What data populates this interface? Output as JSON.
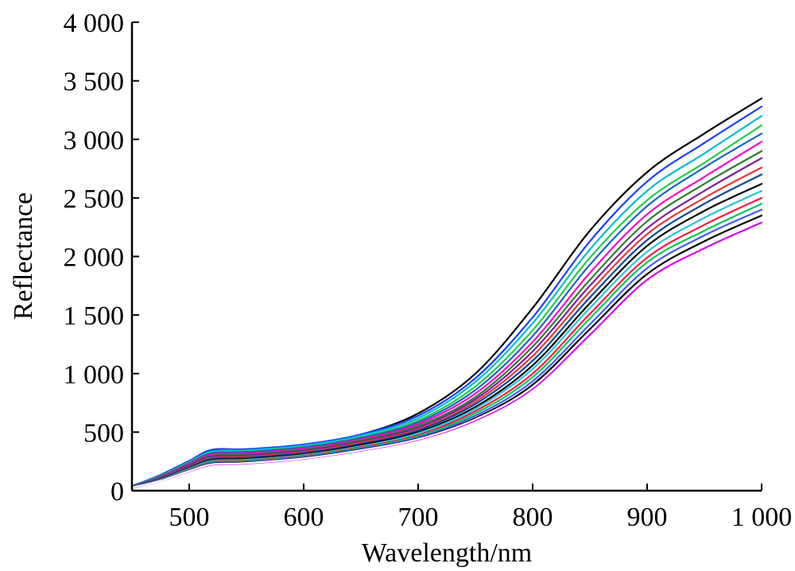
{
  "chart_data": {
    "type": "line",
    "title": "",
    "xlabel": "Wavelength/nm",
    "ylabel": "Reflectance",
    "xlim": [
      450,
      1000
    ],
    "ylim": [
      0,
      4000
    ],
    "grid": false,
    "legend": "none",
    "x_ticks": [
      {
        "value": 500,
        "label": "500"
      },
      {
        "value": 600,
        "label": "600"
      },
      {
        "value": 700,
        "label": "700"
      },
      {
        "value": 800,
        "label": "800"
      },
      {
        "value": 900,
        "label": "900"
      },
      {
        "value": 1000,
        "label": "1 000"
      }
    ],
    "y_ticks": [
      {
        "value": 0,
        "label": "0"
      },
      {
        "value": 500,
        "label": "500"
      },
      {
        "value": 1000,
        "label": "1 000"
      },
      {
        "value": 1500,
        "label": "1 500"
      },
      {
        "value": 2000,
        "label": "2 000"
      },
      {
        "value": 2500,
        "label": "2 500"
      },
      {
        "value": 3000,
        "label": "3 000"
      },
      {
        "value": 3500,
        "label": "3 500"
      },
      {
        "value": 4000,
        "label": "4 000"
      }
    ],
    "x": [
      450,
      475,
      500,
      520,
      550,
      600,
      650,
      700,
      750,
      800,
      850,
      900,
      950,
      1000
    ],
    "series": [
      {
        "color": "#000000",
        "values": [
          40,
          130,
          250,
          340,
          350,
          390,
          480,
          660,
          1000,
          1560,
          2220,
          2720,
          3050,
          3350
        ]
      },
      {
        "color": "#1f3fff",
        "values": [
          40,
          135,
          255,
          350,
          355,
          395,
          480,
          640,
          960,
          1480,
          2130,
          2640,
          2970,
          3280
        ]
      },
      {
        "color": "#00bcd4",
        "values": [
          38,
          128,
          245,
          335,
          345,
          385,
          470,
          620,
          930,
          1430,
          2060,
          2560,
          2880,
          3200
        ]
      },
      {
        "color": "#22cc44",
        "values": [
          36,
          125,
          240,
          325,
          335,
          375,
          455,
          600,
          890,
          1370,
          1990,
          2480,
          2800,
          3120
        ]
      },
      {
        "color": "#1565c0",
        "values": [
          36,
          122,
          235,
          320,
          330,
          370,
          450,
          585,
          860,
          1320,
          1930,
          2430,
          2760,
          3050
        ]
      },
      {
        "color": "#ff00cc",
        "values": [
          34,
          118,
          230,
          310,
          320,
          360,
          440,
          570,
          830,
          1270,
          1860,
          2360,
          2680,
          2980
        ]
      },
      {
        "color": "#2e7d32",
        "values": [
          33,
          115,
          222,
          300,
          310,
          350,
          430,
          555,
          800,
          1230,
          1800,
          2300,
          2620,
          2900
        ]
      },
      {
        "color": "#7b1fa2",
        "values": [
          32,
          110,
          215,
          290,
          300,
          340,
          420,
          540,
          780,
          1190,
          1750,
          2240,
          2560,
          2840
        ]
      },
      {
        "color": "#e53935",
        "values": [
          30,
          105,
          205,
          280,
          290,
          330,
          410,
          525,
          760,
          1150,
          1700,
          2190,
          2500,
          2760
        ]
      },
      {
        "color": "#0d47a1",
        "values": [
          30,
          102,
          200,
          272,
          282,
          322,
          400,
          515,
          740,
          1110,
          1650,
          2140,
          2450,
          2700
        ]
      },
      {
        "color": "#000000",
        "values": [
          28,
          98,
          192,
          262,
          272,
          312,
          390,
          500,
          715,
          1070,
          1600,
          2090,
          2390,
          2620
        ]
      },
      {
        "color": "#26c6da",
        "values": [
          28,
          95,
          188,
          255,
          265,
          305,
          380,
          490,
          700,
          1040,
          1560,
          2040,
          2330,
          2560
        ]
      },
      {
        "color": "#ff1744",
        "values": [
          26,
          92,
          182,
          248,
          258,
          298,
          372,
          475,
          680,
          1000,
          1510,
          1990,
          2270,
          2500
        ]
      },
      {
        "color": "#00c853",
        "values": [
          26,
          90,
          178,
          242,
          252,
          292,
          365,
          465,
          660,
          970,
          1470,
          1950,
          2220,
          2450
        ]
      },
      {
        "color": "#3d5afe",
        "values": [
          25,
          88,
          174,
          236,
          246,
          286,
          358,
          455,
          640,
          935,
          1420,
          1900,
          2180,
          2400
        ]
      },
      {
        "color": "#000000",
        "values": [
          24,
          86,
          170,
          230,
          240,
          280,
          350,
          445,
          620,
          905,
          1380,
          1850,
          2130,
          2350
        ]
      },
      {
        "color": "#d500f9",
        "values": [
          24,
          84,
          165,
          222,
          232,
          272,
          342,
          435,
          600,
          870,
          1330,
          1800,
          2070,
          2290
        ]
      },
      {
        "color": "#ffffff",
        "values": [
          25,
          85,
          168,
          226,
          236,
          276,
          346,
          440,
          610,
          885,
          1355,
          1825,
          2100,
          2320
        ]
      }
    ]
  }
}
